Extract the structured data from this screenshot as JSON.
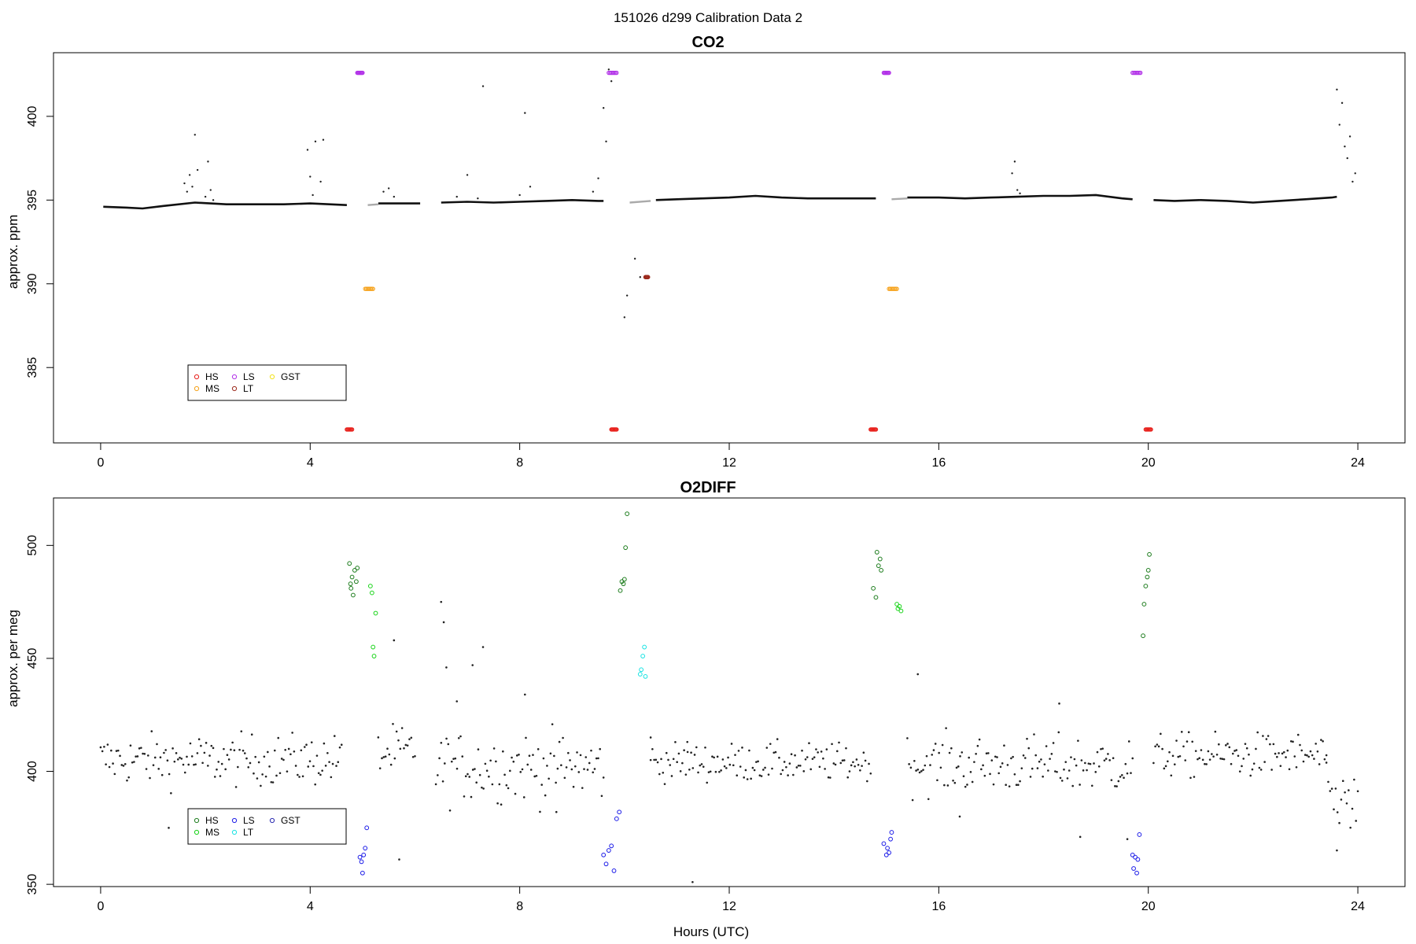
{
  "figure": {
    "super_title": "151026   d299   Calibration Data 2",
    "x_axis_label": "Hours (UTC)"
  },
  "chart_data": [
    {
      "type": "scatter",
      "title": "CO2",
      "ylabel": "approx. ppm",
      "xlabel": "",
      "xlim": [
        -0.9,
        24.9
      ],
      "ylim": [
        380.5,
        403.8
      ],
      "x_ticks": [
        0,
        4,
        8,
        12,
        16,
        20,
        24
      ],
      "y_ticks": [
        385,
        390,
        395,
        400
      ],
      "grid": false,
      "legend_position": "bottom-left",
      "legend": [
        {
          "label": "HS",
          "color": "#e8211c"
        },
        {
          "label": "MS",
          "color": "#f6a21b"
        },
        {
          "label": "LS",
          "color": "#b232e8"
        },
        {
          "label": "LT",
          "color": "#9c2b1e"
        },
        {
          "label": "GST",
          "color": "#f2e21c"
        }
      ],
      "baseline_segments": [
        {
          "x": [
            0.05,
            0.5,
            0.8,
            1.2,
            1.8,
            2.4,
            3.0,
            3.5,
            4.0,
            4.7
          ],
          "y": [
            394.6,
            394.55,
            394.5,
            394.65,
            394.85,
            394.75,
            394.75,
            394.75,
            394.8,
            394.7
          ]
        },
        {
          "x": [
            5.3,
            5.8,
            6.1
          ],
          "y": [
            394.8,
            394.8,
            394.8
          ]
        },
        {
          "x": [
            6.5,
            7.0,
            7.5,
            8.0,
            8.5,
            9.0,
            9.5,
            9.6
          ],
          "y": [
            394.85,
            394.9,
            394.85,
            394.9,
            394.95,
            395.0,
            394.95,
            394.95
          ]
        },
        {
          "x": [
            10.6,
            11.0,
            11.5,
            12.0,
            12.5,
            13.0,
            13.5,
            14.0,
            14.5,
            14.8
          ],
          "y": [
            395.0,
            395.05,
            395.1,
            395.15,
            395.25,
            395.15,
            395.1,
            395.1,
            395.1,
            395.1
          ]
        },
        {
          "x": [
            15.4,
            16.0,
            16.5,
            17.0,
            17.5,
            18.0,
            18.5,
            19.0,
            19.5,
            19.7
          ],
          "y": [
            395.15,
            395.15,
            395.1,
            395.15,
            395.2,
            395.25,
            395.25,
            395.3,
            395.1,
            395.05
          ]
        },
        {
          "x": [
            20.1,
            20.5,
            21.0,
            21.5,
            22.0,
            22.5,
            23.0,
            23.5,
            23.6
          ],
          "y": [
            395.0,
            394.95,
            395.0,
            394.95,
            394.85,
            394.95,
            395.05,
            395.15,
            395.2
          ]
        }
      ],
      "transition_segments": [
        {
          "x": [
            5.1,
            5.3
          ],
          "y": [
            394.7,
            394.75
          ]
        },
        {
          "x": [
            10.1,
            10.5
          ],
          "y": [
            394.85,
            394.95
          ]
        },
        {
          "x": [
            15.1,
            15.4
          ],
          "y": [
            395.05,
            395.1
          ]
        }
      ],
      "excursions": {
        "x": [
          1.6,
          1.65,
          1.7,
          1.75,
          1.8,
          1.85,
          2.0,
          2.05,
          2.1,
          2.15,
          3.95,
          4.0,
          4.05,
          4.1,
          4.2,
          4.25,
          5.4,
          5.5,
          5.6,
          6.8,
          7.0,
          7.2,
          7.3,
          8.0,
          8.1,
          8.2,
          9.4,
          9.5,
          9.6,
          9.65,
          9.7,
          9.75,
          10.0,
          10.05,
          10.2,
          10.3,
          17.4,
          17.45,
          17.5,
          17.55,
          23.6,
          23.65,
          23.7,
          23.75,
          23.8,
          23.85,
          23.9,
          23.95
        ],
        "y": [
          396.0,
          395.5,
          396.5,
          395.8,
          398.9,
          396.8,
          395.2,
          397.3,
          395.6,
          395.0,
          398.0,
          396.4,
          395.3,
          398.5,
          396.1,
          398.6,
          395.5,
          395.7,
          395.2,
          395.2,
          396.5,
          395.1,
          401.8,
          395.3,
          400.2,
          395.8,
          395.5,
          396.3,
          400.5,
          398.5,
          402.8,
          402.1,
          388.0,
          389.3,
          391.5,
          390.4,
          396.6,
          397.3,
          395.6,
          395.4,
          401.6,
          399.5,
          400.8,
          398.2,
          397.5,
          398.8,
          396.1,
          396.6
        ]
      },
      "calibrations": [
        {
          "name": "HS",
          "color": "#e8211c",
          "x_start": 4.7,
          "x_end": 4.8,
          "y": 381.3
        },
        {
          "name": "HS",
          "color": "#e8211c",
          "x_start": 9.75,
          "x_end": 9.85,
          "y": 381.3
        },
        {
          "name": "HS",
          "color": "#e8211c",
          "x_start": 14.7,
          "x_end": 14.8,
          "y": 381.3
        },
        {
          "name": "HS",
          "color": "#e8211c",
          "x_start": 19.95,
          "x_end": 20.05,
          "y": 381.3
        },
        {
          "name": "LS",
          "color": "#b232e8",
          "x_start": 4.9,
          "x_end": 5.0,
          "y": 402.6
        },
        {
          "name": "LS",
          "color": "#b232e8",
          "x_start": 9.7,
          "x_end": 9.85,
          "y": 402.6
        },
        {
          "name": "LS",
          "color": "#b232e8",
          "x_start": 14.95,
          "x_end": 15.05,
          "y": 402.6
        },
        {
          "name": "LS",
          "color": "#b232e8",
          "x_start": 19.7,
          "x_end": 19.85,
          "y": 402.6
        },
        {
          "name": "MS",
          "color": "#f6a21b",
          "x_start": 5.05,
          "x_end": 5.2,
          "y": 389.7
        },
        {
          "name": "MS",
          "color": "#f6a21b",
          "x_start": 15.05,
          "x_end": 15.2,
          "y": 389.7
        },
        {
          "name": "LT",
          "color": "#9c2b1e",
          "x_start": 10.4,
          "x_end": 10.45,
          "y": 390.4
        }
      ]
    },
    {
      "type": "scatter",
      "title": "O2DIFF",
      "ylabel": "approx. per meg",
      "xlabel": "Hours (UTC)",
      "xlim": [
        -0.9,
        24.9
      ],
      "ylim": [
        349,
        521
      ],
      "x_ticks": [
        0,
        4,
        8,
        12,
        16,
        20,
        24
      ],
      "y_ticks": [
        350,
        400,
        450,
        500
      ],
      "grid": false,
      "legend_position": "bottom-left",
      "legend": [
        {
          "label": "HS",
          "color": "#1e7d1e"
        },
        {
          "label": "MS",
          "color": "#18d418"
        },
        {
          "label": "LS",
          "color": "#1c1ce8"
        },
        {
          "label": "LT",
          "color": "#19e3e3"
        },
        {
          "label": "GST",
          "color": "#2a2ab0"
        }
      ],
      "background_segments": [
        {
          "x_start": 0.0,
          "x_end": 4.6,
          "center": 405,
          "spread": 8
        },
        {
          "x_start": 5.3,
          "x_end": 6.0,
          "center": 408,
          "spread": 9
        },
        {
          "x_start": 6.4,
          "x_end": 9.6,
          "center": 402,
          "spread": 11
        },
        {
          "x_start": 10.5,
          "x_end": 14.7,
          "center": 404,
          "spread": 6
        },
        {
          "x_start": 15.4,
          "x_end": 19.7,
          "center": 403,
          "spread": 9
        },
        {
          "x_start": 20.1,
          "x_end": 23.4,
          "center": 407,
          "spread": 7
        },
        {
          "x_start": 23.4,
          "x_end": 24.0,
          "center": 390,
          "spread": 10
        }
      ],
      "outliers": {
        "x": [
          1.3,
          5.6,
          5.7,
          6.5,
          6.55,
          6.6,
          6.8,
          7.1,
          7.3,
          8.1,
          8.7,
          10.5,
          11.3,
          11.2,
          15.6,
          16.4,
          18.3,
          18.7,
          19.6,
          23.6
        ],
        "y": [
          375,
          458,
          361,
          475,
          466,
          446,
          431,
          447,
          455,
          434,
          382,
          415,
          351,
          413,
          443,
          380,
          430,
          371,
          370,
          365
        ]
      },
      "calibrations": [
        {
          "name": "HS",
          "color": "#1e7d1e",
          "x": [
            4.75,
            4.8,
            4.82,
            4.78,
            4.85,
            4.88,
            4.9,
            4.77
          ],
          "y": [
            492,
            486,
            478,
            481,
            489,
            484,
            490,
            483
          ]
        },
        {
          "name": "MS",
          "color": "#18d418",
          "x": [
            5.15,
            5.18,
            5.2,
            5.22,
            5.25
          ],
          "y": [
            482,
            479,
            455,
            451,
            470
          ]
        },
        {
          "name": "LS",
          "color": "#1c1ce8",
          "x": [
            4.95,
            5.0,
            5.05,
            5.02,
            4.98,
            5.08
          ],
          "y": [
            362,
            355,
            366,
            363,
            360,
            375
          ]
        },
        {
          "name": "HS",
          "color": "#1e7d1e",
          "x": [
            9.92,
            9.95,
            9.98,
            10.0,
            10.05,
            10.02
          ],
          "y": [
            480,
            484,
            483,
            485,
            514,
            499
          ]
        },
        {
          "name": "LT",
          "color": "#19e3e3",
          "x": [
            10.3,
            10.32,
            10.35,
            10.38,
            10.4
          ],
          "y": [
            443,
            445,
            451,
            455,
            442
          ]
        },
        {
          "name": "LS",
          "color": "#1c1ce8",
          "x": [
            9.6,
            9.65,
            9.7,
            9.75,
            9.8,
            9.85,
            9.9
          ],
          "y": [
            363,
            359,
            365,
            367,
            356,
            379,
            382
          ]
        },
        {
          "name": "HS",
          "color": "#1e7d1e",
          "x": [
            14.75,
            14.8,
            14.82,
            14.85,
            14.88,
            14.9
          ],
          "y": [
            481,
            477,
            497,
            491,
            494,
            489
          ]
        },
        {
          "name": "MS",
          "color": "#18d418",
          "x": [
            15.2,
            15.22,
            15.25,
            15.28
          ],
          "y": [
            474,
            472,
            473,
            471
          ]
        },
        {
          "name": "LS",
          "color": "#1c1ce8",
          "x": [
            14.95,
            15.0,
            15.05,
            15.08,
            15.1,
            15.02
          ],
          "y": [
            368,
            363,
            364,
            370,
            373,
            366
          ]
        },
        {
          "name": "HS",
          "color": "#1e7d1e",
          "x": [
            19.9,
            19.92,
            19.95,
            19.98,
            20.0,
            20.02
          ],
          "y": [
            460,
            474,
            482,
            486,
            489,
            496
          ]
        },
        {
          "name": "LS",
          "color": "#1c1ce8",
          "x": [
            19.7,
            19.72,
            19.75,
            19.78,
            19.8,
            19.83
          ],
          "y": [
            363,
            357,
            362,
            355,
            361,
            372
          ]
        }
      ]
    }
  ]
}
